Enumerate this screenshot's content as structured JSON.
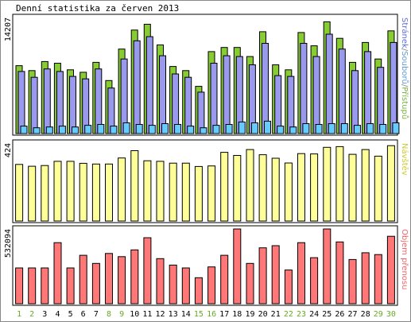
{
  "chart_data": [
    {
      "type": "bar",
      "title": "Denní statistika za červen 2013",
      "ylabel_max": "14207",
      "legend": {
        "parts": [
          {
            "text": "Stránek",
            "color": "#6070d8"
          },
          {
            "text": "/",
            "color": "#888888"
          },
          {
            "text": "Souborů",
            "color": "#5b9bd5"
          },
          {
            "text": "/",
            "color": "#888888"
          },
          {
            "text": "Přístupů",
            "color": "#7cb342"
          }
        ],
        "placement": "right-vertical"
      },
      "ylim": [
        0,
        14207
      ],
      "categories": [
        "1",
        "2",
        "3",
        "4",
        "5",
        "6",
        "7",
        "8",
        "9",
        "10",
        "11",
        "12",
        "13",
        "14",
        "15",
        "16",
        "17",
        "18",
        "19",
        "20",
        "21",
        "22",
        "23",
        "24",
        "25",
        "26",
        "27",
        "28",
        "29",
        "30"
      ],
      "series": [
        {
          "name": "Přístupů",
          "color": "#88cc33",
          "values": [
            8200,
            7600,
            8700,
            8500,
            7700,
            7400,
            8600,
            6400,
            10200,
            12500,
            13200,
            10700,
            8100,
            7600,
            5700,
            9900,
            10400,
            10400,
            9300,
            12300,
            8300,
            7700,
            12200,
            10600,
            13500,
            11500,
            8600,
            11000,
            9000,
            12400
          ]
        },
        {
          "name": "Souborů",
          "color": "#9999ee",
          "values": [
            7500,
            6800,
            7800,
            7500,
            6900,
            6600,
            7800,
            5500,
            9000,
            11200,
            11700,
            9400,
            7200,
            6800,
            5000,
            8500,
            9400,
            9300,
            8300,
            10900,
            7000,
            6900,
            10900,
            9300,
            12000,
            10200,
            7600,
            9900,
            8000,
            11000
          ]
        },
        {
          "name": "Stránek",
          "color": "#66ccff",
          "values": [
            900,
            700,
            800,
            900,
            800,
            1000,
            1100,
            900,
            1300,
            1100,
            1000,
            1200,
            1100,
            900,
            700,
            1000,
            1100,
            1400,
            1300,
            1500,
            900,
            800,
            1200,
            1100,
            1200,
            1200,
            1000,
            1200,
            1100,
            1300
          ]
        }
      ]
    },
    {
      "type": "bar",
      "ylabel_max": "424",
      "legend": {
        "parts": [
          {
            "text": "Návštěv",
            "color": "#cccc33"
          }
        ],
        "placement": "right-vertical"
      },
      "ylim": [
        0,
        424
      ],
      "categories": [
        "1",
        "2",
        "3",
        "4",
        "5",
        "6",
        "7",
        "8",
        "9",
        "10",
        "11",
        "12",
        "13",
        "14",
        "15",
        "16",
        "17",
        "18",
        "19",
        "20",
        "21",
        "22",
        "23",
        "24",
        "25",
        "26",
        "27",
        "28",
        "29",
        "30"
      ],
      "series": [
        {
          "name": "Návštěv",
          "color": "#ffff99",
          "values": [
            308,
            298,
            302,
            325,
            325,
            314,
            310,
            310,
            343,
            383,
            328,
            325,
            315,
            315,
            297,
            300,
            374,
            357,
            389,
            361,
            342,
            316,
            367,
            365,
            401,
            405,
            363,
            389,
            353,
            410
          ]
        }
      ]
    },
    {
      "type": "bar",
      "ylabel_max": "532094",
      "legend": {
        "parts": [
          {
            "text": "Objem přenosu",
            "color": "#ee6666"
          }
        ],
        "placement": "right-vertical"
      },
      "ylim": [
        0,
        532094
      ],
      "categories": [
        "1",
        "2",
        "3",
        "4",
        "5",
        "6",
        "7",
        "8",
        "9",
        "10",
        "11",
        "12",
        "13",
        "14",
        "15",
        "16",
        "17",
        "18",
        "19",
        "20",
        "21",
        "22",
        "23",
        "24",
        "25",
        "26",
        "27",
        "28",
        "29",
        "30"
      ],
      "series": [
        {
          "name": "Objem přenosu",
          "color": "#ff7777",
          "values": [
            255000,
            255000,
            255000,
            435000,
            255000,
            345000,
            287000,
            358000,
            335000,
            383000,
            470000,
            321000,
            275000,
            255000,
            185000,
            262000,
            345000,
            532000,
            287000,
            398000,
            413000,
            240000,
            435000,
            328000,
            532000,
            440000,
            315000,
            363000,
            350000,
            480000
          ]
        }
      ]
    }
  ],
  "x_label_colors": {
    "weekday": "#000000",
    "weekend": "#66aa22"
  },
  "weekend_days": [
    "1",
    "2",
    "8",
    "9",
    "15",
    "16",
    "22",
    "23",
    "29",
    "30"
  ]
}
